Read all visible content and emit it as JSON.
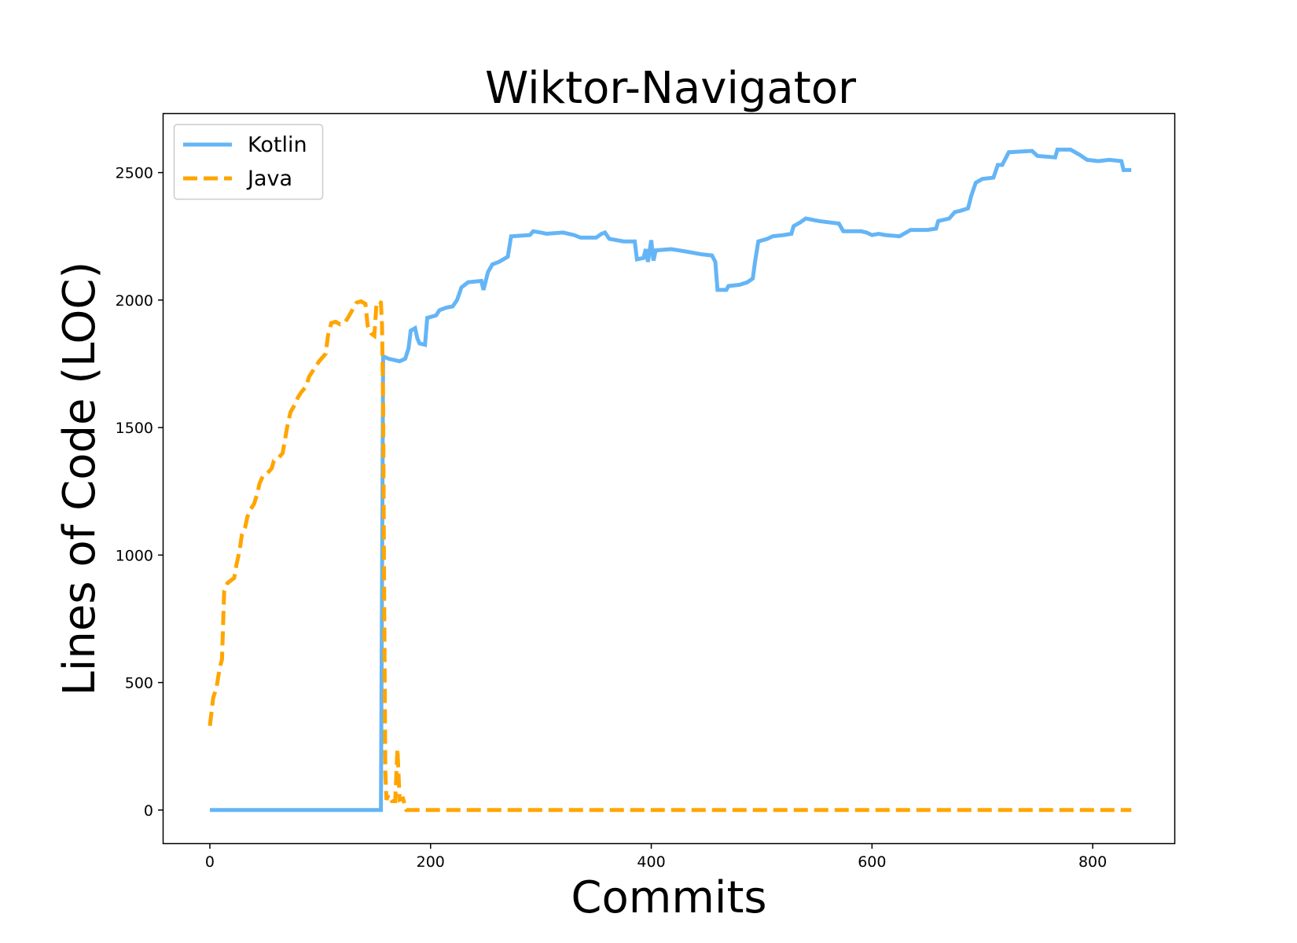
{
  "chart_data": {
    "type": "line",
    "title": "Wiktor-Navigator",
    "xlabel": "Commits",
    "ylabel": "Lines of Code (LOC)",
    "xlim": [
      -42,
      874
    ],
    "ylim": [
      -130,
      2730
    ],
    "xticks": [
      0,
      200,
      400,
      600,
      800
    ],
    "yticks": [
      0,
      500,
      1000,
      1500,
      2000,
      2500
    ],
    "grid": false,
    "legend_position": "top-left",
    "series": [
      {
        "name": "Kotlin",
        "color": "#64b5f6",
        "style": "solid",
        "points": [
          [
            0,
            0
          ],
          [
            155,
            0
          ],
          [
            157,
            1780
          ],
          [
            162,
            1770
          ],
          [
            172,
            1760
          ],
          [
            177,
            1770
          ],
          [
            180,
            1810
          ],
          [
            182,
            1880
          ],
          [
            186,
            1890
          ],
          [
            188,
            1850
          ],
          [
            190,
            1830
          ],
          [
            195,
            1825
          ],
          [
            197,
            1930
          ],
          [
            205,
            1940
          ],
          [
            208,
            1960
          ],
          [
            214,
            1970
          ],
          [
            220,
            1975
          ],
          [
            224,
            2000
          ],
          [
            228,
            2050
          ],
          [
            234,
            2070
          ],
          [
            246,
            2075
          ],
          [
            248,
            2040
          ],
          [
            252,
            2110
          ],
          [
            256,
            2140
          ],
          [
            262,
            2150
          ],
          [
            270,
            2170
          ],
          [
            273,
            2250
          ],
          [
            290,
            2255
          ],
          [
            293,
            2270
          ],
          [
            300,
            2265
          ],
          [
            305,
            2260
          ],
          [
            320,
            2265
          ],
          [
            330,
            2255
          ],
          [
            336,
            2245
          ],
          [
            350,
            2245
          ],
          [
            355,
            2260
          ],
          [
            358,
            2265
          ],
          [
            362,
            2240
          ],
          [
            375,
            2230
          ],
          [
            385,
            2230
          ],
          [
            387,
            2160
          ],
          [
            393,
            2165
          ],
          [
            395,
            2200
          ],
          [
            397,
            2150
          ],
          [
            400,
            2235
          ],
          [
            402,
            2155
          ],
          [
            404,
            2195
          ],
          [
            418,
            2200
          ],
          [
            432,
            2190
          ],
          [
            445,
            2180
          ],
          [
            455,
            2175
          ],
          [
            458,
            2150
          ],
          [
            460,
            2040
          ],
          [
            468,
            2040
          ],
          [
            470,
            2055
          ],
          [
            480,
            2060
          ],
          [
            487,
            2070
          ],
          [
            492,
            2085
          ],
          [
            494,
            2150
          ],
          [
            497,
            2230
          ],
          [
            505,
            2240
          ],
          [
            510,
            2250
          ],
          [
            520,
            2255
          ],
          [
            527,
            2260
          ],
          [
            529,
            2290
          ],
          [
            535,
            2305
          ],
          [
            540,
            2320
          ],
          [
            552,
            2310
          ],
          [
            570,
            2300
          ],
          [
            574,
            2270
          ],
          [
            590,
            2270
          ],
          [
            595,
            2265
          ],
          [
            600,
            2255
          ],
          [
            606,
            2260
          ],
          [
            612,
            2255
          ],
          [
            625,
            2250
          ],
          [
            635,
            2275
          ],
          [
            650,
            2275
          ],
          [
            658,
            2280
          ],
          [
            660,
            2310
          ],
          [
            670,
            2320
          ],
          [
            675,
            2345
          ],
          [
            680,
            2350
          ],
          [
            687,
            2360
          ],
          [
            690,
            2410
          ],
          [
            694,
            2460
          ],
          [
            700,
            2475
          ],
          [
            710,
            2480
          ],
          [
            714,
            2530
          ],
          [
            718,
            2530
          ],
          [
            724,
            2580
          ],
          [
            745,
            2585
          ],
          [
            750,
            2565
          ],
          [
            766,
            2560
          ],
          [
            768,
            2590
          ],
          [
            780,
            2590
          ],
          [
            788,
            2570
          ],
          [
            795,
            2550
          ],
          [
            805,
            2545
          ],
          [
            815,
            2550
          ],
          [
            826,
            2545
          ],
          [
            828,
            2510
          ],
          [
            835,
            2510
          ]
        ]
      },
      {
        "name": "Java",
        "color": "#ffa500",
        "style": "dashed",
        "points": [
          [
            0,
            330
          ],
          [
            3,
            440
          ],
          [
            6,
            480
          ],
          [
            9,
            560
          ],
          [
            11,
            590
          ],
          [
            13,
            860
          ],
          [
            16,
            890
          ],
          [
            19,
            900
          ],
          [
            22,
            910
          ],
          [
            24,
            960
          ],
          [
            27,
            1020
          ],
          [
            29,
            1080
          ],
          [
            32,
            1110
          ],
          [
            34,
            1150
          ],
          [
            37,
            1180
          ],
          [
            40,
            1200
          ],
          [
            43,
            1240
          ],
          [
            45,
            1280
          ],
          [
            48,
            1310
          ],
          [
            52,
            1320
          ],
          [
            56,
            1340
          ],
          [
            58,
            1370
          ],
          [
            62,
            1380
          ],
          [
            66,
            1400
          ],
          [
            68,
            1450
          ],
          [
            70,
            1500
          ],
          [
            73,
            1560
          ],
          [
            77,
            1590
          ],
          [
            80,
            1620
          ],
          [
            83,
            1640
          ],
          [
            87,
            1660
          ],
          [
            90,
            1700
          ],
          [
            93,
            1720
          ],
          [
            96,
            1740
          ],
          [
            99,
            1760
          ],
          [
            103,
            1780
          ],
          [
            105,
            1790
          ],
          [
            107,
            1860
          ],
          [
            110,
            1910
          ],
          [
            114,
            1915
          ],
          [
            118,
            1905
          ],
          [
            122,
            1910
          ],
          [
            125,
            1930
          ],
          [
            129,
            1960
          ],
          [
            133,
            1990
          ],
          [
            137,
            1995
          ],
          [
            141,
            1985
          ],
          [
            143,
            1900
          ],
          [
            146,
            1870
          ],
          [
            149,
            1860
          ],
          [
            151,
            1990
          ],
          [
            153,
            1995
          ],
          [
            155,
            1990
          ],
          [
            156,
            1900
          ],
          [
            157,
            1600
          ],
          [
            158,
            800
          ],
          [
            159,
            150
          ],
          [
            160,
            40
          ],
          [
            162,
            60
          ],
          [
            165,
            35
          ],
          [
            168,
            35
          ],
          [
            170,
            240
          ],
          [
            172,
            40
          ],
          [
            175,
            45
          ],
          [
            178,
            0
          ],
          [
            835,
            0
          ]
        ]
      }
    ]
  }
}
